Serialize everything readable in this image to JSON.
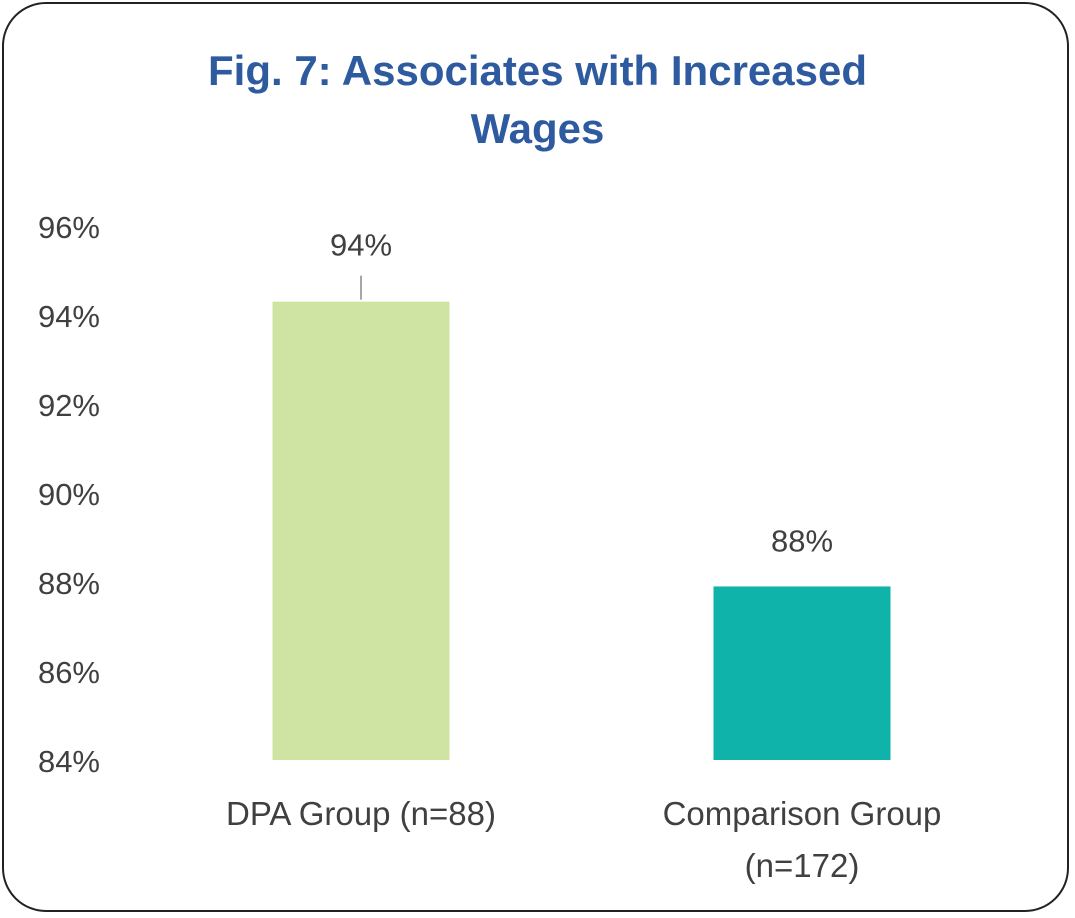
{
  "chart_data": {
    "type": "bar",
    "title_lines": [
      "Fig. 7: Associates with Increased",
      "Wages"
    ],
    "categories": [
      [
        "DPA Group (n=88)"
      ],
      [
        "Comparison Group",
        "(n=172)"
      ]
    ],
    "values": [
      0.943,
      0.879
    ],
    "data_labels": [
      "94%",
      "88%"
    ],
    "bar_colors": [
      "#cfe4a3",
      "#0fb3aa"
    ],
    "ylim": [
      0.84,
      0.96
    ],
    "yticks": [
      0.84,
      0.86,
      0.88,
      0.9,
      0.92,
      0.94,
      0.96
    ],
    "ytick_labels": [
      "84%",
      "86%",
      "88%",
      "90%",
      "92%",
      "94%",
      "96%"
    ],
    "grid": false,
    "legend": "none",
    "title_color": "#2e5aa0",
    "text_color": "#404040"
  }
}
